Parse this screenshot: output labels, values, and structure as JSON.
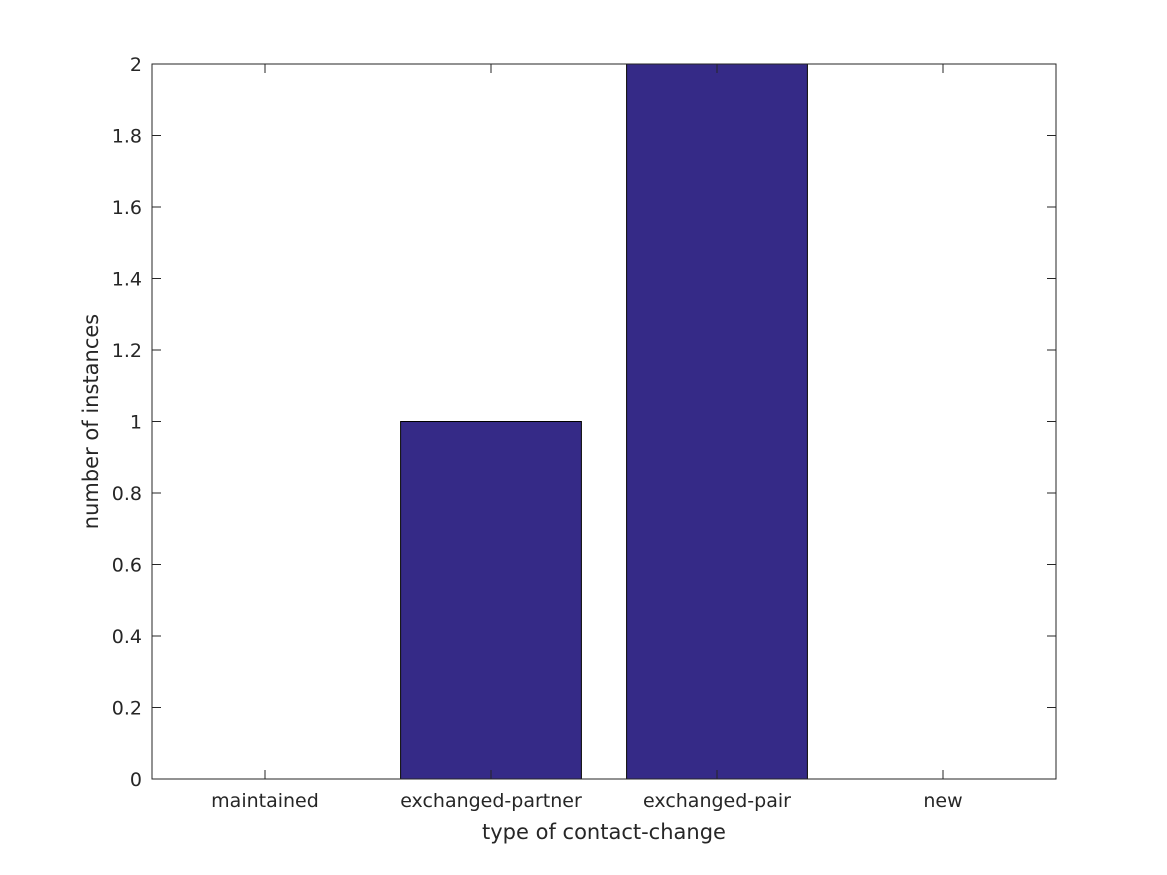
{
  "chart_data": {
    "type": "bar",
    "title": "",
    "xlabel": "type of contact-change",
    "ylabel": "number of instances",
    "categories": [
      "maintained",
      "exchanged-partner",
      "exchanged-pair",
      "new"
    ],
    "values": [
      0,
      1,
      2,
      0
    ],
    "ylim": [
      0,
      2
    ],
    "yticks": [
      "0",
      "0.2",
      "0.4",
      "0.6",
      "0.8",
      "1",
      "1.2",
      "1.4",
      "1.6",
      "1.8",
      "2"
    ],
    "grid": false,
    "legend": "none",
    "bar_color": "#352a87"
  }
}
